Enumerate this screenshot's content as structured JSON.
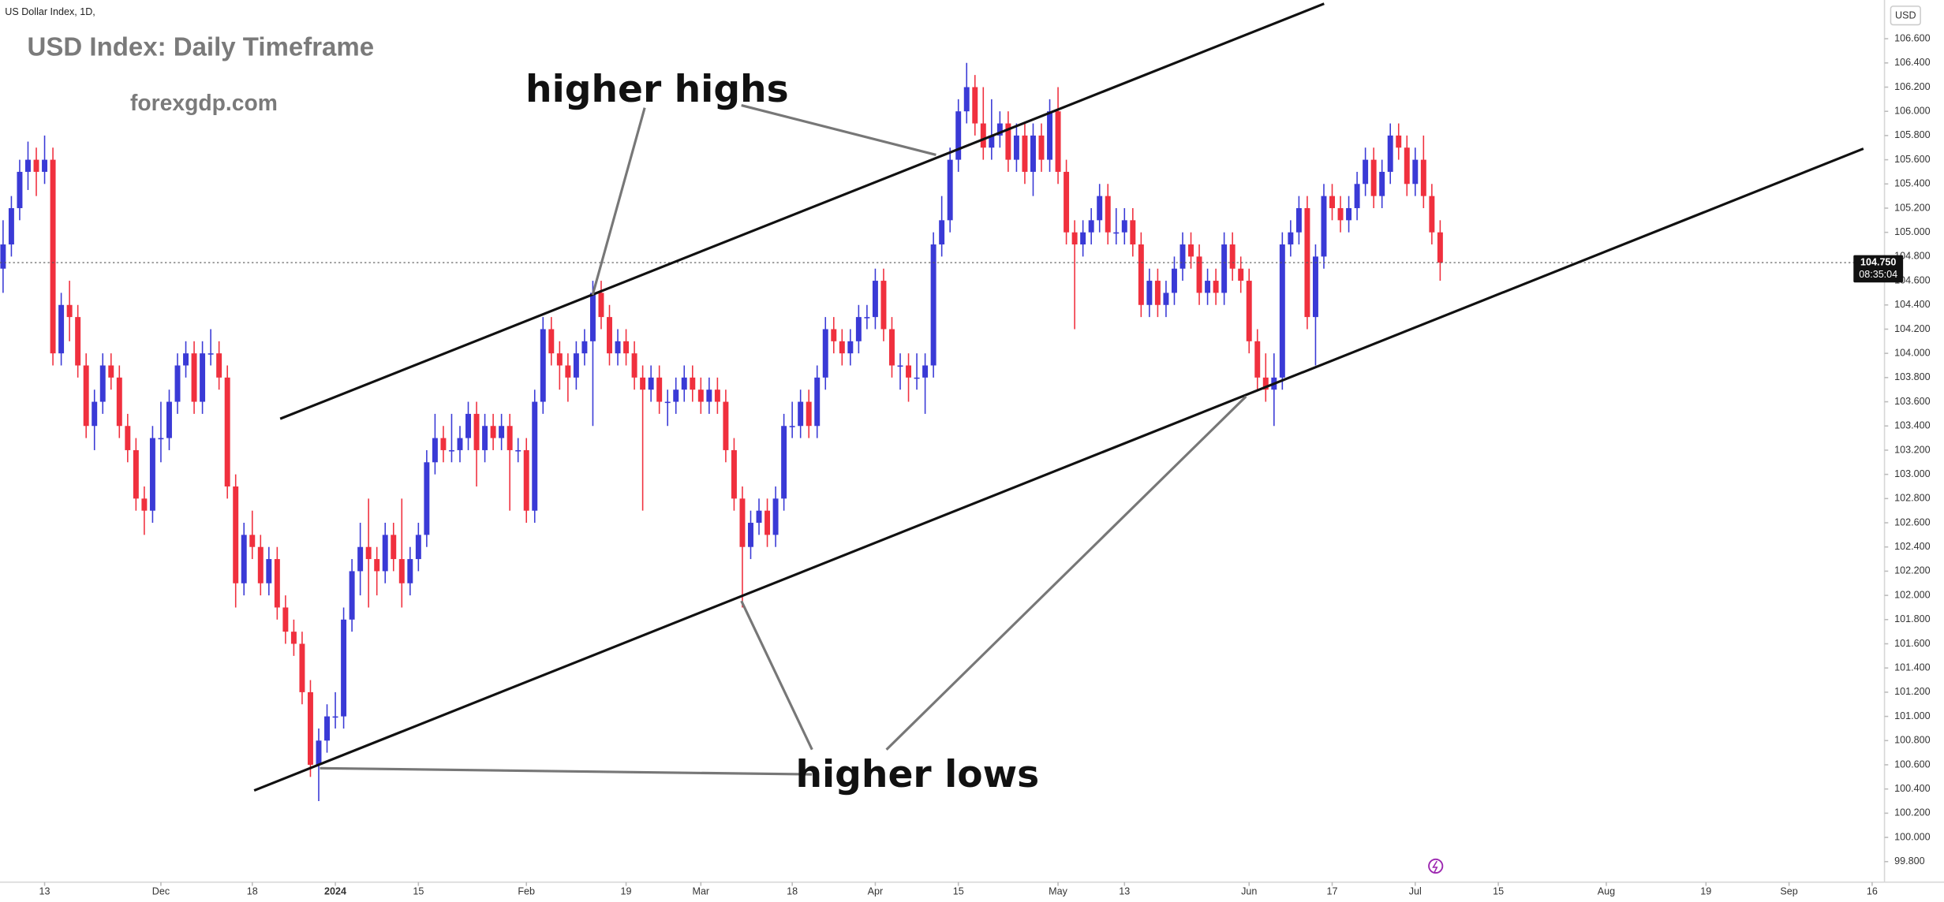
{
  "chart_data": {
    "type": "candlestick",
    "header": "US Dollar Index, 1D,",
    "title": "USD Index: Daily Timeframe",
    "subtitle": "forexgdp.com",
    "currency": "USD",
    "annotations": [
      "higher highs",
      "higher lows"
    ],
    "up_color": "#3a3ad6",
    "down_color": "#f0303e",
    "grid": false,
    "xlim": [
      -0.37,
      226.49
    ],
    "ylim": [
      99.63,
      106.92
    ],
    "xticks": [
      {
        "value": 5,
        "label": "13"
      },
      {
        "value": 19,
        "label": "Dec"
      },
      {
        "value": 30,
        "label": "18"
      },
      {
        "value": 40,
        "label": "2024"
      },
      {
        "value": 50,
        "label": "15"
      },
      {
        "value": 63,
        "label": "Feb"
      },
      {
        "value": 75,
        "label": "19"
      },
      {
        "value": 84,
        "label": "Mar"
      },
      {
        "value": 95,
        "label": "18"
      },
      {
        "value": 105,
        "label": "Apr"
      },
      {
        "value": 115,
        "label": "15"
      },
      {
        "value": 127,
        "label": "May"
      },
      {
        "value": 135,
        "label": "13"
      },
      {
        "value": 150,
        "label": "Jun"
      },
      {
        "value": 160,
        "label": "17"
      },
      {
        "value": 170,
        "label": "Jul"
      },
      {
        "value": 180,
        "label": "15"
      },
      {
        "value": 193,
        "label": "Aug"
      },
      {
        "value": 205,
        "label": "19"
      },
      {
        "value": 215,
        "label": "Sep"
      },
      {
        "value": 225,
        "label": "16"
      }
    ],
    "yticks": [
      {
        "value": 99.8,
        "label": "99.800"
      },
      {
        "value": 100.0,
        "label": "100.000"
      },
      {
        "value": 100.2,
        "label": "100.200"
      },
      {
        "value": 100.4,
        "label": "100.400"
      },
      {
        "value": 100.6,
        "label": "100.600"
      },
      {
        "value": 100.8,
        "label": "100.800"
      },
      {
        "value": 101.0,
        "label": "101.000"
      },
      {
        "value": 101.2,
        "label": "101.200"
      },
      {
        "value": 101.4,
        "label": "101.400"
      },
      {
        "value": 101.6,
        "label": "101.600"
      },
      {
        "value": 101.8,
        "label": "101.800"
      },
      {
        "value": 102.0,
        "label": "102.000"
      },
      {
        "value": 102.2,
        "label": "102.200"
      },
      {
        "value": 102.4,
        "label": "102.400"
      },
      {
        "value": 102.6,
        "label": "102.600"
      },
      {
        "value": 102.8,
        "label": "102.800"
      },
      {
        "value": 103.0,
        "label": "103.000"
      },
      {
        "value": 103.2,
        "label": "103.200"
      },
      {
        "value": 103.4,
        "label": "103.400"
      },
      {
        "value": 103.6,
        "label": "103.600"
      },
      {
        "value": 103.8,
        "label": "103.800"
      },
      {
        "value": 104.0,
        "label": "104.000"
      },
      {
        "value": 104.2,
        "label": "104.200"
      },
      {
        "value": 104.4,
        "label": "104.400"
      },
      {
        "value": 104.6,
        "label": "104.600"
      },
      {
        "value": 104.8,
        "label": "104.800"
      },
      {
        "value": 105.0,
        "label": "105.000"
      },
      {
        "value": 105.2,
        "label": "105.200"
      },
      {
        "value": 105.4,
        "label": "105.400"
      },
      {
        "value": 105.6,
        "label": "105.600"
      },
      {
        "value": 105.8,
        "label": "105.800"
      },
      {
        "value": 106.0,
        "label": "106.000"
      },
      {
        "value": 106.2,
        "label": "106.200"
      },
      {
        "value": 106.4,
        "label": "106.400"
      },
      {
        "value": 106.6,
        "label": "106.600"
      }
    ],
    "last_price": {
      "value": 104.75,
      "label": "104.750"
    },
    "countdown": "08:35:04",
    "candles": [
      [
        104.7,
        105.1,
        104.5,
        104.9
      ],
      [
        104.9,
        105.3,
        104.8,
        105.2
      ],
      [
        105.2,
        105.6,
        105.1,
        105.5
      ],
      [
        105.5,
        105.75,
        105.35,
        105.6
      ],
      [
        105.6,
        105.7,
        105.3,
        105.5
      ],
      [
        105.5,
        105.8,
        105.4,
        105.6
      ],
      [
        105.6,
        105.7,
        103.9,
        104.0
      ],
      [
        104.0,
        104.5,
        103.9,
        104.4
      ],
      [
        104.4,
        104.6,
        104.1,
        104.3
      ],
      [
        104.3,
        104.4,
        103.8,
        103.9
      ],
      [
        103.9,
        104.0,
        103.3,
        103.4
      ],
      [
        103.4,
        103.7,
        103.2,
        103.6
      ],
      [
        103.6,
        104.0,
        103.5,
        103.9
      ],
      [
        103.9,
        104.0,
        103.7,
        103.8
      ],
      [
        103.8,
        103.9,
        103.3,
        103.4
      ],
      [
        103.4,
        103.5,
        103.1,
        103.2
      ],
      [
        103.2,
        103.3,
        102.7,
        102.8
      ],
      [
        102.8,
        102.9,
        102.5,
        102.7
      ],
      [
        102.7,
        103.4,
        102.6,
        103.3
      ],
      [
        103.3,
        103.6,
        103.1,
        103.3
      ],
      [
        103.3,
        103.7,
        103.2,
        103.6
      ],
      [
        103.6,
        104.0,
        103.5,
        103.9
      ],
      [
        103.9,
        104.1,
        103.8,
        104.0
      ],
      [
        104.0,
        104.1,
        103.5,
        103.6
      ],
      [
        103.6,
        104.1,
        103.5,
        104.0
      ],
      [
        104.0,
        104.2,
        103.9,
        104.0
      ],
      [
        104.0,
        104.1,
        103.7,
        103.8
      ],
      [
        103.8,
        103.9,
        102.8,
        102.9
      ],
      [
        102.9,
        103.0,
        101.9,
        102.1
      ],
      [
        102.1,
        102.6,
        102.0,
        102.5
      ],
      [
        102.5,
        102.7,
        102.3,
        102.4
      ],
      [
        102.4,
        102.5,
        102.0,
        102.1
      ],
      [
        102.1,
        102.4,
        102.0,
        102.3
      ],
      [
        102.3,
        102.4,
        101.8,
        101.9
      ],
      [
        101.9,
        102.0,
        101.6,
        101.7
      ],
      [
        101.7,
        101.8,
        101.5,
        101.6
      ],
      [
        101.6,
        101.7,
        101.1,
        101.2
      ],
      [
        101.2,
        101.3,
        100.5,
        100.6
      ],
      [
        100.6,
        100.9,
        100.3,
        100.8
      ],
      [
        100.8,
        101.1,
        100.7,
        101.0
      ],
      [
        101.0,
        101.2,
        100.9,
        101.0
      ],
      [
        101.0,
        101.9,
        100.9,
        101.8
      ],
      [
        101.8,
        102.3,
        101.7,
        102.2
      ],
      [
        102.2,
        102.6,
        102.0,
        102.4
      ],
      [
        102.4,
        102.8,
        101.9,
        102.3
      ],
      [
        102.3,
        102.4,
        102.0,
        102.2
      ],
      [
        102.2,
        102.6,
        102.1,
        102.5
      ],
      [
        102.5,
        102.6,
        102.2,
        102.3
      ],
      [
        102.3,
        102.8,
        101.9,
        102.1
      ],
      [
        102.1,
        102.4,
        102.0,
        102.3
      ],
      [
        102.3,
        102.6,
        102.2,
        102.5
      ],
      [
        102.5,
        103.2,
        102.4,
        103.1
      ],
      [
        103.1,
        103.5,
        103.0,
        103.3
      ],
      [
        103.3,
        103.4,
        103.1,
        103.2
      ],
      [
        103.2,
        103.5,
        103.1,
        103.2
      ],
      [
        103.2,
        103.4,
        103.1,
        103.3
      ],
      [
        103.3,
        103.6,
        103.2,
        103.5
      ],
      [
        103.5,
        103.6,
        102.9,
        103.2
      ],
      [
        103.2,
        103.5,
        103.1,
        103.4
      ],
      [
        103.4,
        103.5,
        103.2,
        103.3
      ],
      [
        103.3,
        103.5,
        103.2,
        103.4
      ],
      [
        103.4,
        103.5,
        102.7,
        103.2
      ],
      [
        103.2,
        103.3,
        103.1,
        103.2
      ],
      [
        103.2,
        103.3,
        102.6,
        102.7
      ],
      [
        102.7,
        103.7,
        102.6,
        103.6
      ],
      [
        103.6,
        104.3,
        103.5,
        104.2
      ],
      [
        104.2,
        104.3,
        103.9,
        104.0
      ],
      [
        104.0,
        104.1,
        103.7,
        103.9
      ],
      [
        103.9,
        104.0,
        103.6,
        103.8
      ],
      [
        103.8,
        104.1,
        103.7,
        104.0
      ],
      [
        104.0,
        104.2,
        103.9,
        104.1
      ],
      [
        104.1,
        104.6,
        103.4,
        104.5
      ],
      [
        104.5,
        104.6,
        104.2,
        104.3
      ],
      [
        104.3,
        104.4,
        103.9,
        104.0
      ],
      [
        104.0,
        104.2,
        103.9,
        104.1
      ],
      [
        104.1,
        104.2,
        103.9,
        104.0
      ],
      [
        104.0,
        104.1,
        103.7,
        103.8
      ],
      [
        103.8,
        103.9,
        102.7,
        103.7
      ],
      [
        103.7,
        103.9,
        103.6,
        103.8
      ],
      [
        103.8,
        103.9,
        103.5,
        103.6
      ],
      [
        103.6,
        103.7,
        103.4,
        103.6
      ],
      [
        103.6,
        103.8,
        103.5,
        103.7
      ],
      [
        103.7,
        103.9,
        103.6,
        103.8
      ],
      [
        103.8,
        103.9,
        103.6,
        103.7
      ],
      [
        103.7,
        103.8,
        103.5,
        103.6
      ],
      [
        103.6,
        103.8,
        103.5,
        103.7
      ],
      [
        103.7,
        103.8,
        103.5,
        103.6
      ],
      [
        103.6,
        103.7,
        103.1,
        103.2
      ],
      [
        103.2,
        103.3,
        102.7,
        102.8
      ],
      [
        102.8,
        102.9,
        101.9,
        102.4
      ],
      [
        102.4,
        102.7,
        102.3,
        102.6
      ],
      [
        102.6,
        102.8,
        102.5,
        102.7
      ],
      [
        102.7,
        102.8,
        102.4,
        102.5
      ],
      [
        102.5,
        102.9,
        102.4,
        102.8
      ],
      [
        102.8,
        103.5,
        102.7,
        103.4
      ],
      [
        103.4,
        103.6,
        103.3,
        103.4
      ],
      [
        103.4,
        103.7,
        103.3,
        103.6
      ],
      [
        103.6,
        103.7,
        103.3,
        103.4
      ],
      [
        103.4,
        103.9,
        103.3,
        103.8
      ],
      [
        103.8,
        104.3,
        103.7,
        104.2
      ],
      [
        104.2,
        104.3,
        104.0,
        104.1
      ],
      [
        104.1,
        104.2,
        103.9,
        104.0
      ],
      [
        104.0,
        104.2,
        103.9,
        104.1
      ],
      [
        104.1,
        104.4,
        104.0,
        104.3
      ],
      [
        104.3,
        104.4,
        104.2,
        104.3
      ],
      [
        104.3,
        104.7,
        104.2,
        104.6
      ],
      [
        104.6,
        104.7,
        104.1,
        104.2
      ],
      [
        104.2,
        104.3,
        103.8,
        103.9
      ],
      [
        103.9,
        104.0,
        103.7,
        103.9
      ],
      [
        103.9,
        104.0,
        103.6,
        103.8
      ],
      [
        103.8,
        104.0,
        103.7,
        103.8
      ],
      [
        103.8,
        104.0,
        103.5,
        103.9
      ],
      [
        103.9,
        105.0,
        103.8,
        104.9
      ],
      [
        104.9,
        105.3,
        104.8,
        105.1
      ],
      [
        105.1,
        105.7,
        105.0,
        105.6
      ],
      [
        105.6,
        106.1,
        105.5,
        106.0
      ],
      [
        106.0,
        106.4,
        105.9,
        106.2
      ],
      [
        106.2,
        106.3,
        105.8,
        105.9
      ],
      [
        105.9,
        106.2,
        105.6,
        105.7
      ],
      [
        105.7,
        106.1,
        105.6,
        105.8
      ],
      [
        105.8,
        106.0,
        105.7,
        105.9
      ],
      [
        105.9,
        106.0,
        105.5,
        105.6
      ],
      [
        105.6,
        105.9,
        105.5,
        105.8
      ],
      [
        105.8,
        105.9,
        105.4,
        105.5
      ],
      [
        105.5,
        105.9,
        105.3,
        105.8
      ],
      [
        105.8,
        105.9,
        105.5,
        105.6
      ],
      [
        105.6,
        106.1,
        105.5,
        106.0
      ],
      [
        106.0,
        106.2,
        105.4,
        105.5
      ],
      [
        105.5,
        105.6,
        104.9,
        105.0
      ],
      [
        105.0,
        105.1,
        104.2,
        104.9
      ],
      [
        104.9,
        105.1,
        104.8,
        105.0
      ],
      [
        105.0,
        105.2,
        104.9,
        105.1
      ],
      [
        105.1,
        105.4,
        105.0,
        105.3
      ],
      [
        105.3,
        105.4,
        104.9,
        105.0
      ],
      [
        105.0,
        105.2,
        104.9,
        105.0
      ],
      [
        105.0,
        105.2,
        104.9,
        105.1
      ],
      [
        105.1,
        105.2,
        104.8,
        104.9
      ],
      [
        104.9,
        105.0,
        104.3,
        104.4
      ],
      [
        104.4,
        104.7,
        104.3,
        104.6
      ],
      [
        104.6,
        104.7,
        104.3,
        104.4
      ],
      [
        104.4,
        104.6,
        104.3,
        104.5
      ],
      [
        104.5,
        104.8,
        104.4,
        104.7
      ],
      [
        104.7,
        105.0,
        104.6,
        104.9
      ],
      [
        104.9,
        105.0,
        104.7,
        104.8
      ],
      [
        104.8,
        104.9,
        104.4,
        104.5
      ],
      [
        104.5,
        104.7,
        104.4,
        104.6
      ],
      [
        104.6,
        104.7,
        104.4,
        104.5
      ],
      [
        104.5,
        105.0,
        104.4,
        104.9
      ],
      [
        104.9,
        105.0,
        104.6,
        104.7
      ],
      [
        104.7,
        104.8,
        104.5,
        104.6
      ],
      [
        104.6,
        104.7,
        104.0,
        104.1
      ],
      [
        104.1,
        104.2,
        103.7,
        103.8
      ],
      [
        103.8,
        104.0,
        103.6,
        103.7
      ],
      [
        103.7,
        104.0,
        103.4,
        103.8
      ],
      [
        103.8,
        105.0,
        103.7,
        104.9
      ],
      [
        104.9,
        105.1,
        104.8,
        105.0
      ],
      [
        105.0,
        105.3,
        104.9,
        105.2
      ],
      [
        105.2,
        105.3,
        104.2,
        104.3
      ],
      [
        104.3,
        104.9,
        103.9,
        104.8
      ],
      [
        104.8,
        105.4,
        104.7,
        105.3
      ],
      [
        105.3,
        105.4,
        105.1,
        105.2
      ],
      [
        105.2,
        105.3,
        105.0,
        105.1
      ],
      [
        105.1,
        105.3,
        105.0,
        105.2
      ],
      [
        105.2,
        105.5,
        105.1,
        105.4
      ],
      [
        105.4,
        105.7,
        105.3,
        105.6
      ],
      [
        105.6,
        105.7,
        105.2,
        105.3
      ],
      [
        105.3,
        105.6,
        105.2,
        105.5
      ],
      [
        105.5,
        105.9,
        105.4,
        105.8
      ],
      [
        105.8,
        105.9,
        105.6,
        105.7
      ],
      [
        105.7,
        105.8,
        105.3,
        105.4
      ],
      [
        105.4,
        105.7,
        105.3,
        105.6
      ],
      [
        105.6,
        105.8,
        105.2,
        105.3
      ],
      [
        105.3,
        105.4,
        104.9,
        105.0
      ],
      [
        105.0,
        105.1,
        104.6,
        104.75
      ]
    ]
  }
}
